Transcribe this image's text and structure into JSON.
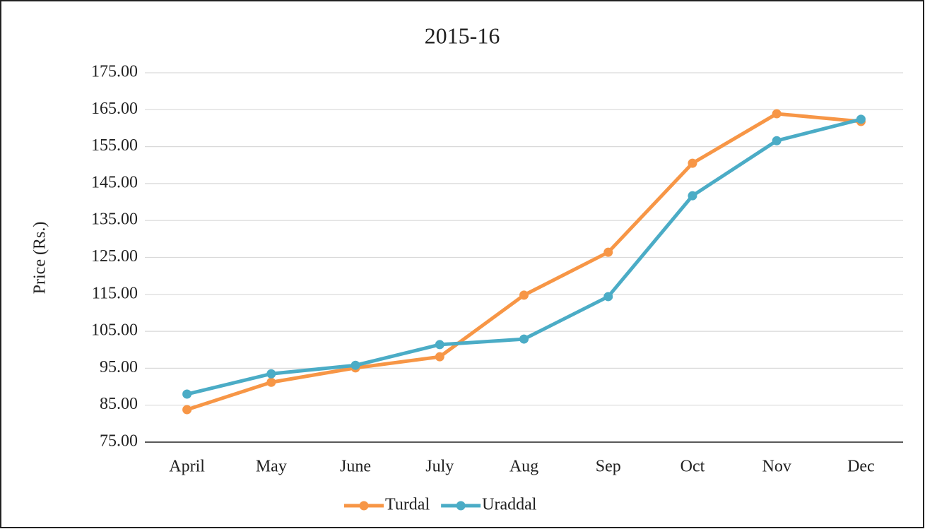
{
  "chart_data": {
    "type": "line",
    "title": "2015-16",
    "y_label": "Price (Rs.)",
    "categories": [
      "April",
      "May",
      "June",
      "July",
      "Aug",
      "Sep",
      "Oct",
      "Nov",
      "Dec"
    ],
    "series": [
      {
        "name": "Turdal",
        "color": "#f79646",
        "values": [
          83.8,
          91.2,
          95.1,
          98.1,
          114.8,
          126.4,
          150.5,
          163.9,
          161.8
        ]
      },
      {
        "name": "Uraddal",
        "color": "#4bacc6",
        "values": [
          88.0,
          93.5,
          95.8,
          101.4,
          102.9,
          114.4,
          141.7,
          156.6,
          162.4
        ]
      }
    ],
    "ylim": [
      75,
      175
    ],
    "yticks": [
      {
        "value": 75,
        "label": "75.00"
      },
      {
        "value": 85,
        "label": "85.00"
      },
      {
        "value": 95,
        "label": "95.00"
      },
      {
        "value": 105,
        "label": "105.00"
      },
      {
        "value": 115,
        "label": "115.00"
      },
      {
        "value": 125,
        "label": "125.00"
      },
      {
        "value": 135,
        "label": "135.00"
      },
      {
        "value": 145,
        "label": "145.00"
      },
      {
        "value": 155,
        "label": "155.00"
      },
      {
        "value": 165,
        "label": "165.00"
      },
      {
        "value": 175,
        "label": "175.00"
      }
    ],
    "grid": true,
    "legend": "bottom"
  }
}
